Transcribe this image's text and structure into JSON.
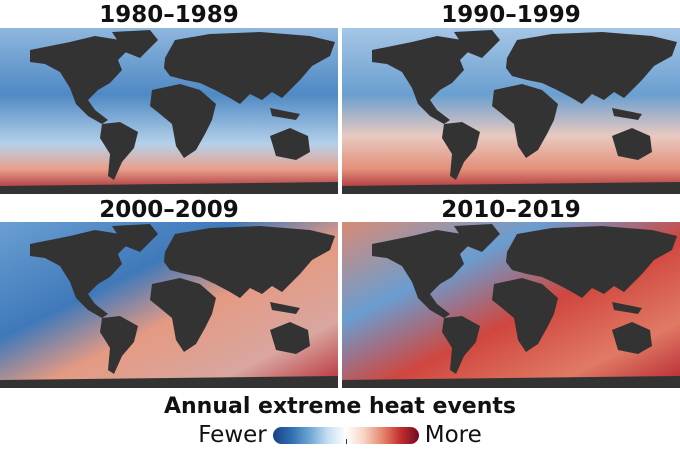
{
  "panels": [
    {
      "title": "1980–1989",
      "tone": "cold"
    },
    {
      "title": "1990–1999",
      "tone": "cool"
    },
    {
      "title": "2000–2009",
      "tone": "warm"
    },
    {
      "title": "2010–2019",
      "tone": "hot"
    }
  ],
  "legend": {
    "title": "Annual extreme heat events",
    "low_label": "Fewer",
    "high_label": "More",
    "colors": {
      "low": "#1b3f86",
      "mid": "#ffffff",
      "high": "#6e0b20"
    }
  },
  "land_color": "#333333"
}
